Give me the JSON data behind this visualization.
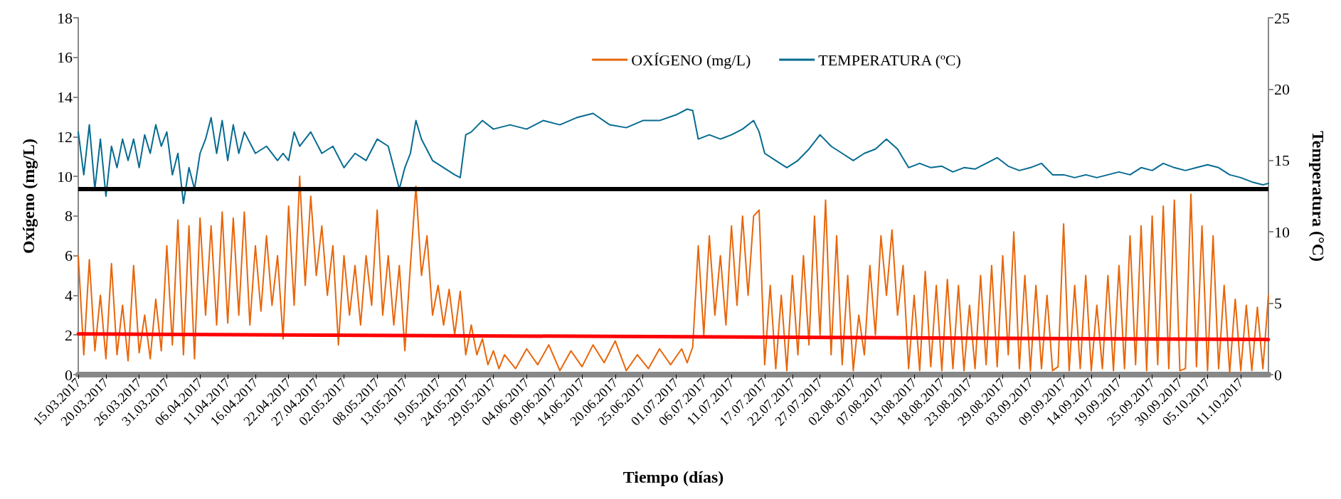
{
  "chart_data": {
    "type": "line",
    "xlabel": "Tiempo (días)",
    "ylabel": "Oxígeno (mg/L)",
    "y2label": "Temperatura (°C)",
    "xlim": [
      "2017-03-15",
      "2017-10-16"
    ],
    "xticks": [
      {
        "value": "2017-03-15",
        "label": "15.03.2017"
      },
      {
        "value": "2017-03-20",
        "label": "20.03.2017"
      },
      {
        "value": "2017-03-26",
        "label": "26.03.2017"
      },
      {
        "value": "2017-03-31",
        "label": "31.03.2017"
      },
      {
        "value": "2017-04-06",
        "label": "06.04.2017"
      },
      {
        "value": "2017-04-11",
        "label": "11.04.2017"
      },
      {
        "value": "2017-04-16",
        "label": "16.04.2017"
      },
      {
        "value": "2017-04-22",
        "label": "22.04.2017"
      },
      {
        "value": "2017-04-27",
        "label": "27.04.2017"
      },
      {
        "value": "2017-05-02",
        "label": "02.05.2017"
      },
      {
        "value": "2017-05-08",
        "label": "08.05.2017"
      },
      {
        "value": "2017-05-13",
        "label": "13.05.2017"
      },
      {
        "value": "2017-05-19",
        "label": "19.05.2017"
      },
      {
        "value": "2017-05-24",
        "label": "24.05.2017"
      },
      {
        "value": "2017-05-29",
        "label": "29.05.2017"
      },
      {
        "value": "2017-06-04",
        "label": "04.06.2017"
      },
      {
        "value": "2017-06-09",
        "label": "09.06.2017"
      },
      {
        "value": "2017-06-14",
        "label": "14.06.2017"
      },
      {
        "value": "2017-06-20",
        "label": "20.06.2017"
      },
      {
        "value": "2017-06-25",
        "label": "25.06.2017"
      },
      {
        "value": "2017-07-01",
        "label": "01.07.2017"
      },
      {
        "value": "2017-07-06",
        "label": "06.07.2017"
      },
      {
        "value": "2017-07-11",
        "label": "11.07.2017"
      },
      {
        "value": "2017-07-17",
        "label": "17.07.2017"
      },
      {
        "value": "2017-07-22",
        "label": "22.07.2017"
      },
      {
        "value": "2017-07-27",
        "label": "27.07.2017"
      },
      {
        "value": "2017-08-02",
        "label": "02.08.2017"
      },
      {
        "value": "2017-08-07",
        "label": "07.08.2017"
      },
      {
        "value": "2017-08-13",
        "label": "13.08.2017"
      },
      {
        "value": "2017-08-18",
        "label": "18.08.2017"
      },
      {
        "value": "2017-08-23",
        "label": "23.08.2017"
      },
      {
        "value": "2017-08-29",
        "label": "29.08.2017"
      },
      {
        "value": "2017-09-03",
        "label": "03.09.2017"
      },
      {
        "value": "2017-09-09",
        "label": "09.09.2017"
      },
      {
        "value": "2017-09-14",
        "label": "14.09.2017"
      },
      {
        "value": "2017-09-19",
        "label": "19.09.2017"
      },
      {
        "value": "2017-09-25",
        "label": "25.09.2017"
      },
      {
        "value": "2017-09-30",
        "label": "30.09.2017"
      },
      {
        "value": "2017-10-05",
        "label": "05.10.2017"
      },
      {
        "value": "2017-10-11",
        "label": "11.10.2017"
      }
    ],
    "ylim": [
      0,
      18
    ],
    "yticks": [
      0,
      2,
      4,
      6,
      8,
      10,
      12,
      14,
      16,
      18
    ],
    "y2lim": [
      0,
      25
    ],
    "y2ticks": [
      0,
      5,
      10,
      15,
      20,
      25
    ],
    "grid": false,
    "legend": "top right",
    "marker": "none",
    "line_style": "solid",
    "ref_lines": [
      {
        "axis": "y2",
        "value": 13,
        "color": "#000000"
      }
    ],
    "series": [
      {
        "name": "OXÍGENO (mg/L)",
        "color": "#e8660a",
        "x": [
          "2017-03-15",
          "2017-03-16",
          "2017-03-17",
          "2017-03-18",
          "2017-03-19",
          "2017-03-20",
          "2017-03-21",
          "2017-03-22",
          "2017-03-23",
          "2017-03-24",
          "2017-03-25",
          "2017-03-26",
          "2017-03-27",
          "2017-03-28",
          "2017-03-29",
          "2017-03-30",
          "2017-03-31",
          "2017-04-01",
          "2017-04-02",
          "2017-04-03",
          "2017-04-04",
          "2017-04-05",
          "2017-04-06",
          "2017-04-07",
          "2017-04-08",
          "2017-04-09",
          "2017-04-10",
          "2017-04-11",
          "2017-04-12",
          "2017-04-13",
          "2017-04-14",
          "2017-04-15",
          "2017-04-16",
          "2017-04-17",
          "2017-04-18",
          "2017-04-19",
          "2017-04-20",
          "2017-04-21",
          "2017-04-22",
          "2017-04-23",
          "2017-04-24",
          "2017-04-25",
          "2017-04-26",
          "2017-04-27",
          "2017-04-28",
          "2017-04-29",
          "2017-04-30",
          "2017-05-01",
          "2017-05-02",
          "2017-05-03",
          "2017-05-04",
          "2017-05-05",
          "2017-05-06",
          "2017-05-07",
          "2017-05-08",
          "2017-05-09",
          "2017-05-10",
          "2017-05-11",
          "2017-05-12",
          "2017-05-13",
          "2017-05-14",
          "2017-05-15",
          "2017-05-16",
          "2017-05-17",
          "2017-05-18",
          "2017-05-19",
          "2017-05-20",
          "2017-05-21",
          "2017-05-22",
          "2017-05-23",
          "2017-05-24",
          "2017-05-25",
          "2017-05-26",
          "2017-05-27",
          "2017-05-28",
          "2017-05-29",
          "2017-05-30",
          "2017-05-31",
          "2017-06-02",
          "2017-06-04",
          "2017-06-06",
          "2017-06-08",
          "2017-06-10",
          "2017-06-12",
          "2017-06-14",
          "2017-06-16",
          "2017-06-18",
          "2017-06-20",
          "2017-06-22",
          "2017-06-24",
          "2017-06-26",
          "2017-06-28",
          "2017-06-30",
          "2017-07-02",
          "2017-07-03",
          "2017-07-04",
          "2017-07-05",
          "2017-07-06",
          "2017-07-07",
          "2017-07-08",
          "2017-07-09",
          "2017-07-10",
          "2017-07-11",
          "2017-07-12",
          "2017-07-13",
          "2017-07-14",
          "2017-07-15",
          "2017-07-16",
          "2017-07-17",
          "2017-07-18",
          "2017-07-19",
          "2017-07-20",
          "2017-07-21",
          "2017-07-22",
          "2017-07-23",
          "2017-07-24",
          "2017-07-25",
          "2017-07-26",
          "2017-07-27",
          "2017-07-28",
          "2017-07-29",
          "2017-07-30",
          "2017-07-31",
          "2017-08-01",
          "2017-08-02",
          "2017-08-03",
          "2017-08-04",
          "2017-08-05",
          "2017-08-06",
          "2017-08-07",
          "2017-08-08",
          "2017-08-09",
          "2017-08-10",
          "2017-08-11",
          "2017-08-12",
          "2017-08-13",
          "2017-08-14",
          "2017-08-15",
          "2017-08-16",
          "2017-08-17",
          "2017-08-18",
          "2017-08-19",
          "2017-08-20",
          "2017-08-21",
          "2017-08-22",
          "2017-08-23",
          "2017-08-24",
          "2017-08-25",
          "2017-08-26",
          "2017-08-27",
          "2017-08-28",
          "2017-08-29",
          "2017-08-30",
          "2017-08-31",
          "2017-09-01",
          "2017-09-02",
          "2017-09-03",
          "2017-09-04",
          "2017-09-05",
          "2017-09-06",
          "2017-09-07",
          "2017-09-08",
          "2017-09-09",
          "2017-09-10",
          "2017-09-11",
          "2017-09-12",
          "2017-09-13",
          "2017-09-14",
          "2017-09-15",
          "2017-09-16",
          "2017-09-17",
          "2017-09-18",
          "2017-09-19",
          "2017-09-20",
          "2017-09-21",
          "2017-09-22",
          "2017-09-23",
          "2017-09-24",
          "2017-09-25",
          "2017-09-26",
          "2017-09-27",
          "2017-09-28",
          "2017-09-29",
          "2017-09-30",
          "2017-10-01",
          "2017-10-02",
          "2017-10-03",
          "2017-10-04",
          "2017-10-05",
          "2017-10-06",
          "2017-10-07",
          "2017-10-08",
          "2017-10-09",
          "2017-10-10",
          "2017-10-11",
          "2017-10-12",
          "2017-10-13",
          "2017-10-14",
          "2017-10-15",
          "2017-10-16"
        ],
        "values": [
          6.0,
          1.0,
          5.8,
          1.2,
          4.0,
          0.8,
          5.6,
          1.0,
          3.5,
          0.7,
          5.5,
          1.1,
          3.0,
          0.8,
          3.8,
          1.2,
          6.5,
          1.5,
          7.8,
          1.0,
          7.5,
          0.8,
          7.9,
          3.0,
          7.5,
          2.5,
          8.2,
          2.6,
          7.9,
          3.0,
          8.2,
          2.5,
          6.5,
          3.2,
          7.0,
          3.5,
          6.0,
          1.8,
          8.5,
          3.5,
          10.0,
          4.5,
          9.0,
          5.0,
          7.5,
          4.0,
          6.5,
          1.5,
          6.0,
          3.0,
          5.5,
          2.5,
          6.0,
          3.5,
          8.3,
          3.0,
          6.0,
          2.5,
          5.5,
          1.2,
          5.5,
          9.5,
          5.0,
          7.0,
          3.0,
          4.5,
          2.5,
          4.3,
          2.0,
          4.2,
          1.0,
          2.5,
          1.0,
          1.8,
          0.5,
          1.2,
          0.3,
          1.0,
          0.3,
          1.3,
          0.5,
          1.5,
          0.2,
          1.2,
          0.4,
          1.5,
          0.6,
          1.7,
          0.2,
          1.0,
          0.3,
          1.3,
          0.5,
          1.3,
          0.6,
          1.4,
          6.5,
          2.0,
          7.0,
          3.0,
          6.0,
          2.5,
          7.5,
          3.5,
          8.0,
          4.0,
          8.0,
          8.3,
          0.5,
          4.5,
          0.3,
          4.0,
          0.2,
          5.0,
          1.0,
          6.0,
          1.5,
          8.0,
          2.0,
          8.8,
          1.0,
          7.0,
          0.5,
          5.0,
          0.2,
          3.0,
          1.0,
          5.5,
          2.0,
          7.0,
          4.0,
          7.3,
          3.0,
          5.5,
          0.3,
          4.0,
          0.2,
          5.2,
          0.4,
          4.5,
          0.2,
          4.8,
          0.3,
          4.5,
          0.2,
          3.5,
          0.3,
          5.0,
          0.5,
          5.5,
          0.4,
          6.0,
          1.0,
          7.2,
          0.3,
          5.0,
          0.2,
          4.5,
          0.3,
          4.0,
          0.2,
          0.4,
          7.6,
          0.2,
          4.5,
          0.3,
          5.0,
          0.2,
          3.5,
          0.3,
          5.0,
          0.2,
          5.5,
          0.3,
          7.0,
          0.5,
          7.5,
          0.2,
          8.0,
          0.5,
          8.5,
          0.3,
          8.8,
          0.2,
          0.3,
          9.1,
          0.4,
          7.5,
          0.2,
          7.0,
          0.3,
          4.5,
          0.1,
          3.8,
          0.2,
          3.5,
          0.2,
          3.4,
          0.3,
          4.0
        ]
      },
      {
        "name": "TEMPERATURA (ºC)",
        "color": "#066b91",
        "axis": "y2",
        "x": [
          "2017-03-15",
          "2017-03-16",
          "2017-03-17",
          "2017-03-18",
          "2017-03-19",
          "2017-03-20",
          "2017-03-21",
          "2017-03-22",
          "2017-03-23",
          "2017-03-24",
          "2017-03-25",
          "2017-03-26",
          "2017-03-27",
          "2017-03-28",
          "2017-03-29",
          "2017-03-30",
          "2017-03-31",
          "2017-04-01",
          "2017-04-02",
          "2017-04-03",
          "2017-04-04",
          "2017-04-05",
          "2017-04-06",
          "2017-04-07",
          "2017-04-08",
          "2017-04-09",
          "2017-04-10",
          "2017-04-11",
          "2017-04-12",
          "2017-04-13",
          "2017-04-14",
          "2017-04-16",
          "2017-04-18",
          "2017-04-20",
          "2017-04-21",
          "2017-04-22",
          "2017-04-23",
          "2017-04-24",
          "2017-04-26",
          "2017-04-28",
          "2017-04-30",
          "2017-05-02",
          "2017-05-04",
          "2017-05-06",
          "2017-05-08",
          "2017-05-10",
          "2017-05-11",
          "2017-05-12",
          "2017-05-13",
          "2017-05-14",
          "2017-05-15",
          "2017-05-16",
          "2017-05-18",
          "2017-05-20",
          "2017-05-22",
          "2017-05-23",
          "2017-05-24",
          "2017-05-25",
          "2017-05-27",
          "2017-05-29",
          "2017-06-01",
          "2017-06-04",
          "2017-06-07",
          "2017-06-10",
          "2017-06-13",
          "2017-06-16",
          "2017-06-19",
          "2017-06-22",
          "2017-06-25",
          "2017-06-28",
          "2017-07-01",
          "2017-07-03",
          "2017-07-04",
          "2017-07-05",
          "2017-07-07",
          "2017-07-09",
          "2017-07-11",
          "2017-07-13",
          "2017-07-15",
          "2017-07-16",
          "2017-07-17",
          "2017-07-19",
          "2017-07-21",
          "2017-07-23",
          "2017-07-25",
          "2017-07-27",
          "2017-07-29",
          "2017-07-31",
          "2017-08-02",
          "2017-08-04",
          "2017-08-06",
          "2017-08-08",
          "2017-08-10",
          "2017-08-12",
          "2017-08-14",
          "2017-08-16",
          "2017-08-18",
          "2017-08-20",
          "2017-08-22",
          "2017-08-24",
          "2017-08-26",
          "2017-08-28",
          "2017-08-30",
          "2017-09-01",
          "2017-09-03",
          "2017-09-05",
          "2017-09-07",
          "2017-09-09",
          "2017-09-11",
          "2017-09-13",
          "2017-09-15",
          "2017-09-17",
          "2017-09-19",
          "2017-09-21",
          "2017-09-23",
          "2017-09-25",
          "2017-09-27",
          "2017-09-29",
          "2017-10-01",
          "2017-10-03",
          "2017-10-05",
          "2017-10-07",
          "2017-10-09",
          "2017-10-11",
          "2017-10-13",
          "2017-10-15",
          "2017-10-16"
        ],
        "values": [
          17.0,
          14.0,
          17.5,
          13.0,
          16.5,
          12.5,
          16.0,
          14.5,
          16.5,
          15.0,
          16.5,
          14.5,
          16.8,
          15.5,
          17.5,
          16.0,
          17.0,
          14.0,
          15.5,
          12.0,
          14.5,
          13.0,
          15.5,
          16.5,
          18.0,
          15.5,
          17.8,
          15.0,
          17.5,
          15.5,
          17.0,
          15.5,
          16.0,
          15.0,
          15.5,
          15.0,
          17.0,
          16.0,
          17.0,
          15.5,
          16.0,
          14.5,
          15.5,
          15.0,
          16.5,
          16.0,
          14.5,
          13.0,
          14.5,
          15.5,
          17.8,
          16.5,
          15.0,
          14.5,
          14.0,
          13.8,
          16.8,
          17.0,
          17.8,
          17.2,
          17.5,
          17.2,
          17.8,
          17.5,
          18.0,
          18.3,
          17.5,
          17.3,
          17.8,
          17.8,
          18.2,
          18.6,
          18.5,
          16.5,
          16.8,
          16.5,
          16.8,
          17.2,
          17.8,
          17.0,
          15.5,
          15.0,
          14.5,
          15.0,
          15.8,
          16.8,
          16.0,
          15.5,
          15.0,
          15.5,
          15.8,
          16.5,
          15.8,
          14.5,
          14.8,
          14.5,
          14.6,
          14.2,
          14.5,
          14.4,
          14.8,
          15.2,
          14.6,
          14.3,
          14.5,
          14.8,
          14.0,
          14.0,
          13.8,
          14.0,
          13.8,
          14.0,
          14.2,
          14.0,
          14.5,
          14.3,
          14.8,
          14.5,
          14.3,
          14.5,
          14.7,
          14.5,
          14.0,
          13.8,
          13.5,
          13.3,
          13.4
        ]
      },
      {
        "color": "#ff0000",
        "x": [
          "2017-03-15",
          "2017-10-16"
        ],
        "values": [
          2.05,
          1.77
        ]
      }
    ]
  }
}
